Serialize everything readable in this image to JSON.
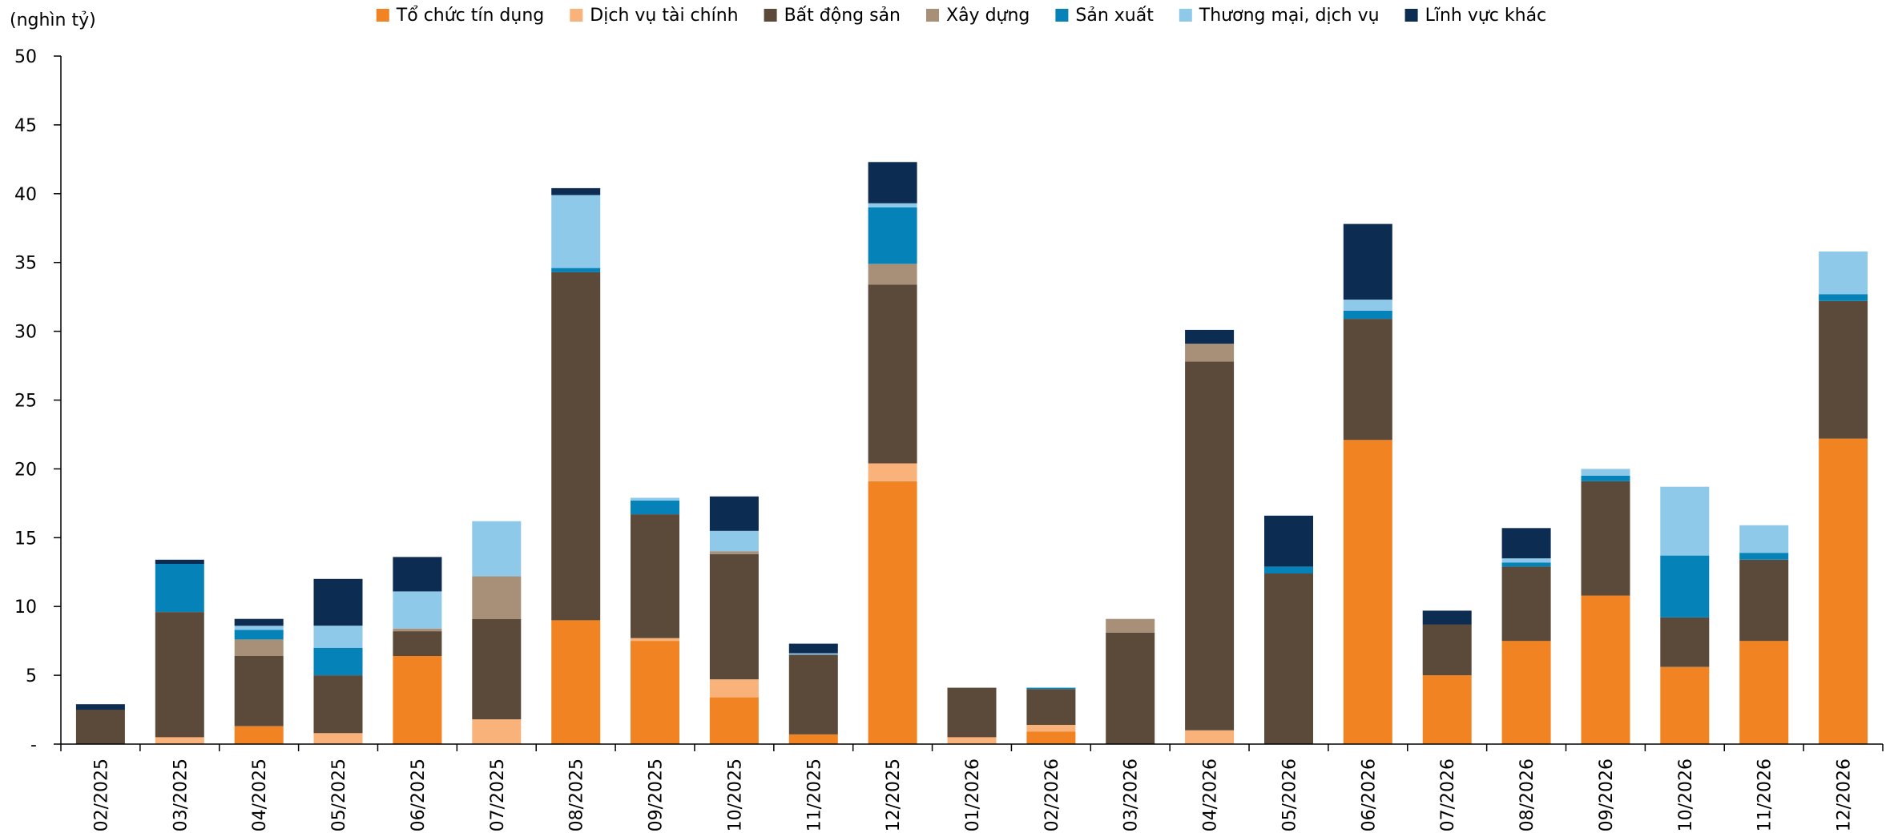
{
  "chart_data": {
    "type": "bar",
    "stacked": true,
    "ylabel": "(nghìn tỷ)",
    "ylim": [
      0,
      50
    ],
    "yticks": [
      {
        "value": 0,
        "label": "-"
      },
      {
        "value": 5,
        "label": "5"
      },
      {
        "value": 10,
        "label": "10"
      },
      {
        "value": 15,
        "label": "15"
      },
      {
        "value": 20,
        "label": "20"
      },
      {
        "value": 25,
        "label": "25"
      },
      {
        "value": 30,
        "label": "30"
      },
      {
        "value": 35,
        "label": "35"
      },
      {
        "value": 40,
        "label": "40"
      },
      {
        "value": 45,
        "label": "45"
      },
      {
        "value": 50,
        "label": "50"
      }
    ],
    "grid": false,
    "legend_position": "top",
    "categories": [
      "02/2025",
      "03/2025",
      "04/2025",
      "05/2025",
      "06/2025",
      "07/2025",
      "08/2025",
      "09/2025",
      "10/2025",
      "11/2025",
      "12/2025",
      "01/2026",
      "02/2026",
      "03/2026",
      "04/2026",
      "05/2026",
      "06/2026",
      "07/2026",
      "08/2026",
      "09/2026",
      "10/2026",
      "11/2026",
      "12/2026"
    ],
    "series": [
      {
        "name": "Tổ chức tín dụng",
        "color": "#F28322",
        "values": [
          0,
          0,
          1.3,
          0,
          6.4,
          0,
          9.0,
          7.5,
          3.4,
          0.7,
          19.1,
          0,
          0.9,
          0,
          0,
          0,
          22.1,
          5.0,
          7.5,
          10.8,
          5.6,
          7.5,
          22.2
        ]
      },
      {
        "name": "Dịch vụ tài chính",
        "color": "#F9B27A",
        "values": [
          0,
          0.5,
          0,
          0.8,
          0,
          1.8,
          0,
          0.2,
          1.3,
          0,
          1.3,
          0.5,
          0.5,
          0,
          1.0,
          0,
          0,
          0,
          0,
          0,
          0,
          0,
          0
        ]
      },
      {
        "name": "Bất động sản",
        "color": "#5B4A3A",
        "values": [
          2.5,
          9.1,
          5.1,
          4.2,
          1.8,
          7.3,
          25.3,
          9.0,
          9.1,
          5.8,
          13.0,
          3.6,
          2.6,
          8.1,
          26.8,
          12.4,
          8.8,
          3.7,
          5.4,
          8.3,
          3.6,
          5.9,
          10.0
        ]
      },
      {
        "name": "Xây dựng",
        "color": "#A89078",
        "values": [
          0,
          0,
          1.2,
          0,
          0.2,
          3.1,
          0,
          0,
          0.2,
          0,
          1.5,
          0,
          0,
          1.0,
          1.3,
          0,
          0,
          0,
          0,
          0,
          0,
          0,
          0
        ]
      },
      {
        "name": "Sản xuất",
        "color": "#0583B8",
        "values": [
          0,
          3.5,
          0.7,
          2.0,
          0,
          0,
          0.3,
          1.0,
          0,
          0,
          4.1,
          0,
          0.1,
          0,
          0,
          0.5,
          0.6,
          0,
          0.3,
          0.4,
          4.5,
          0.5,
          0.5
        ]
      },
      {
        "name": "Thương mại, dịch vụ",
        "color": "#8FC9EA",
        "values": [
          0,
          0,
          0.3,
          1.6,
          2.7,
          4.0,
          5.3,
          0.2,
          1.5,
          0.1,
          0.3,
          0,
          0,
          0,
          0,
          0,
          0.8,
          0,
          0.3,
          0.5,
          5.0,
          2.0,
          3.1
        ]
      },
      {
        "name": "Lĩnh vực khác",
        "color": "#0D2C52",
        "values": [
          0.4,
          0.3,
          0.5,
          3.4,
          2.5,
          0,
          0.5,
          0,
          2.5,
          0.7,
          3.0,
          0,
          0,
          0,
          1.0,
          3.7,
          5.5,
          1.0,
          2.2,
          0,
          0,
          0,
          0
        ]
      }
    ]
  }
}
